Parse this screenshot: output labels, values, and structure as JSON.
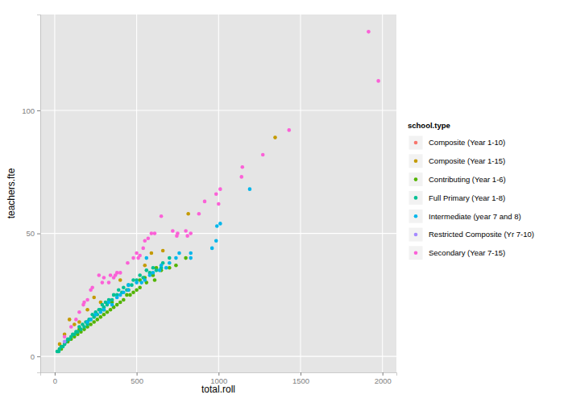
{
  "chart_data": {
    "type": "scatter",
    "x_label": "total.roll",
    "y_label": "teachers.fte",
    "legend_title": "school.type",
    "legend": "right",
    "grid": true,
    "xlim": [
      -88,
      2085
    ],
    "ylim": [
      -6.5,
      139
    ],
    "xticks": [
      0,
      500,
      1000,
      1500,
      2000
    ],
    "yticks": [
      0,
      50,
      100
    ],
    "series": [
      {
        "name": "Composite (Year 1-10)",
        "color": "#F8766D",
        "x": [
          40,
          80
        ],
        "values": [
          4,
          6
        ]
      },
      {
        "name": "Composite (Year 1-15)",
        "color": "#C49A00",
        "x": [
          1345,
          815,
          660,
          590,
          550,
          400,
          280,
          240,
          150,
          90,
          60,
          30,
          200,
          120
        ],
        "values": [
          89,
          58,
          43,
          42,
          37,
          31,
          22,
          24,
          14,
          15,
          9,
          5,
          19,
          13
        ]
      },
      {
        "name": "Contributing (Year 1-6)",
        "color": "#53B400",
        "x": [
          800,
          740,
          700,
          650,
          600,
          560,
          520,
          500,
          480,
          460,
          440,
          420,
          400,
          380,
          360,
          340,
          320,
          300,
          280,
          260,
          240,
          220,
          200,
          180,
          160,
          140,
          120,
          100,
          80,
          60,
          40,
          30,
          450,
          350,
          250,
          550,
          610,
          300,
          200,
          150,
          620,
          520
        ],
        "values": [
          40,
          37,
          36,
          35,
          33,
          30,
          28,
          27,
          26,
          25,
          25,
          23,
          22,
          21,
          20,
          19,
          18,
          17,
          16,
          15,
          14,
          13,
          12,
          11,
          10,
          9,
          8,
          7,
          6,
          5,
          3,
          3,
          27,
          22,
          17,
          32,
          31,
          19,
          14,
          11,
          36,
          31
        ]
      },
      {
        "name": "Full Primary (Year 1-8)",
        "color": "#00C094",
        "x": [
          660,
          620,
          580,
          540,
          500,
          470,
          440,
          410,
          380,
          350,
          320,
          300,
          280,
          260,
          240,
          220,
          200,
          180,
          160,
          140,
          120,
          100,
          80,
          60,
          50,
          40,
          30,
          20,
          15,
          25,
          70,
          90,
          110,
          130,
          150,
          170,
          190,
          210,
          230,
          250,
          270,
          290,
          310,
          330,
          360,
          390,
          420,
          450,
          480,
          520,
          560,
          600,
          650,
          700
        ],
        "values": [
          38,
          35,
          34,
          32,
          31,
          29,
          27,
          26,
          25,
          23,
          21,
          20,
          19,
          17,
          16,
          15,
          13,
          12,
          11,
          10,
          9,
          8,
          7,
          5,
          4,
          4,
          3,
          2,
          2,
          2,
          6,
          7,
          9,
          10,
          12,
          13,
          14,
          15,
          17,
          18,
          19,
          21,
          22,
          23,
          25,
          27,
          28,
          29,
          31,
          33,
          35,
          36,
          36,
          40
        ]
      },
      {
        "name": "Intermediate (year 7 and 8)",
        "color": "#00B6EB",
        "x": [
          1190,
          1010,
          990,
          985,
          960,
          830,
          830,
          760,
          740,
          700,
          680,
          650,
          600,
          580,
          550,
          530,
          500,
          450,
          420,
          400,
          380,
          350,
          330,
          300,
          280,
          250,
          220,
          200,
          450,
          560,
          640
        ],
        "values": [
          68,
          54,
          53,
          47,
          44,
          42,
          40,
          42,
          40,
          38,
          36,
          37,
          34,
          33,
          31,
          30,
          30,
          27,
          26,
          25,
          24,
          21,
          22,
          19,
          18,
          17,
          15,
          14,
          29,
          40,
          35
        ]
      },
      {
        "name": "Restricted Composite (Yr 7-10)",
        "color": "#A58AFF",
        "x": [
          60
        ],
        "values": [
          6
        ]
      },
      {
        "name": "Secondary (Year 7-15)",
        "color": "#FB61D7",
        "x": [
          1915,
          1975,
          1430,
          1270,
          1145,
          1140,
          1010,
          985,
          1000,
          915,
          880,
          830,
          810,
          800,
          750,
          720,
          745,
          650,
          610,
          590,
          570,
          550,
          540,
          520,
          510,
          380,
          370,
          360,
          340,
          300,
          290,
          270,
          230,
          220,
          200,
          180,
          175,
          150,
          130,
          100,
          60,
          400,
          330,
          445,
          480,
          500
        ],
        "values": [
          132,
          112,
          92,
          82,
          77,
          73,
          68,
          66,
          62,
          63,
          58,
          50,
          49,
          51,
          50,
          51,
          49,
          57,
          50,
          50,
          48,
          47,
          44,
          41,
          40,
          34,
          33,
          32,
          33,
          32,
          30,
          33,
          28,
          27,
          23,
          22,
          21,
          18,
          15,
          12,
          8,
          34,
          30,
          38,
          40,
          42
        ]
      }
    ]
  }
}
